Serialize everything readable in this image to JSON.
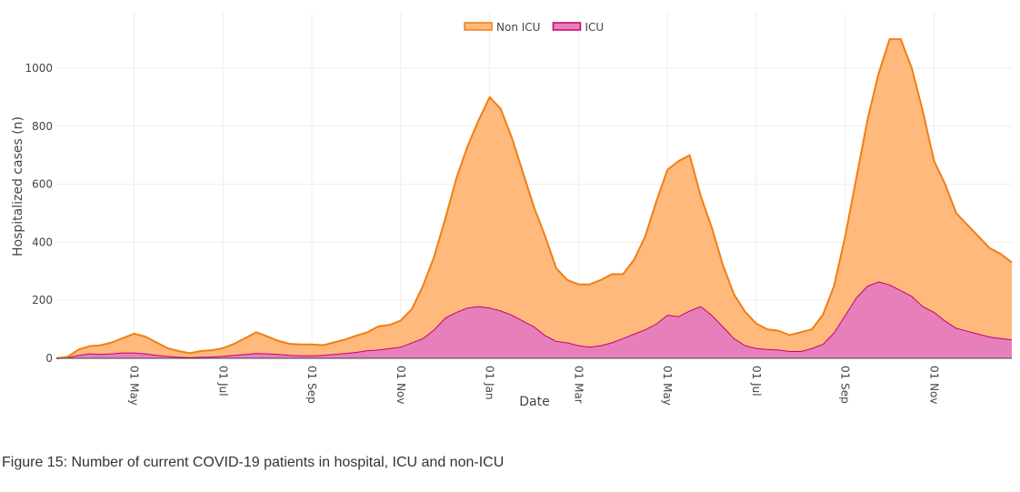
{
  "chart_data": {
    "type": "stacked-area",
    "xlabel": "Date",
    "ylabel": "Hospitalized cases (n)",
    "categories": [
      null,
      null,
      null,
      null,
      null,
      null,
      null,
      "01 May",
      null,
      null,
      null,
      null,
      null,
      null,
      null,
      "01 Jul",
      null,
      null,
      null,
      null,
      null,
      null,
      null,
      "01 Sep",
      null,
      null,
      null,
      null,
      null,
      null,
      null,
      "01 Nov",
      null,
      null,
      null,
      null,
      null,
      null,
      null,
      "01 Jan",
      null,
      null,
      null,
      null,
      null,
      null,
      null,
      "01 Mar",
      null,
      null,
      null,
      null,
      null,
      null,
      null,
      "01 May",
      null,
      null,
      null,
      null,
      null,
      null,
      null,
      "01 Jul",
      null,
      null,
      null,
      null,
      null,
      null,
      null,
      "01 Sep",
      null,
      null,
      null,
      null,
      null,
      null,
      null,
      "01 Nov",
      null,
      null,
      null,
      null,
      null,
      null,
      null
    ],
    "series": [
      {
        "name": "ICU",
        "color": "#c8006f",
        "fill": "#e67fba",
        "values": [
          0,
          3,
          12,
          17,
          15,
          17,
          20,
          20,
          17,
          12,
          8,
          5,
          4,
          5,
          6,
          8,
          12,
          15,
          18,
          17,
          15,
          12,
          10,
          10,
          12,
          15,
          18,
          22,
          28,
          30,
          35,
          40,
          55,
          70,
          100,
          140,
          160,
          175,
          180,
          175,
          165,
          150,
          130,
          110,
          80,
          60,
          55,
          45,
          40,
          45,
          55,
          70,
          85,
          100,
          120,
          150,
          145,
          165,
          180,
          150,
          110,
          70,
          45,
          35,
          32,
          30,
          25,
          25,
          35,
          50,
          90,
          150,
          210,
          250,
          265,
          255,
          235,
          215,
          180,
          160,
          130,
          105,
          95,
          85,
          75,
          70,
          65
        ]
      },
      {
        "name": "Non ICU",
        "color": "#f07f13",
        "fill": "#ffb97c",
        "values": [
          0,
          2,
          18,
          25,
          30,
          38,
          50,
          65,
          58,
          43,
          27,
          20,
          14,
          20,
          22,
          27,
          38,
          55,
          72,
          58,
          45,
          38,
          38,
          38,
          33,
          40,
          47,
          56,
          62,
          80,
          80,
          90,
          115,
          180,
          250,
          340,
          460,
          555,
          640,
          725,
          695,
          610,
          510,
          410,
          340,
          250,
          215,
          210,
          215,
          225,
          235,
          220,
          255,
          320,
          420,
          500,
          535,
          535,
          380,
          300,
          210,
          150,
          115,
          85,
          68,
          65,
          55,
          65,
          65,
          100,
          160,
          270,
          410,
          570,
          715,
          845,
          865,
          785,
          670,
          520,
          470,
          395,
          365,
          335,
          305,
          290,
          265
        ]
      }
    ],
    "ylim": [
      0,
      1190
    ],
    "yticks": [
      0,
      200,
      400,
      600,
      800,
      1000
    ],
    "grid": true
  },
  "caption": "Figure 15: Number of current COVID-19 patients in hospital, ICU and non-ICU"
}
